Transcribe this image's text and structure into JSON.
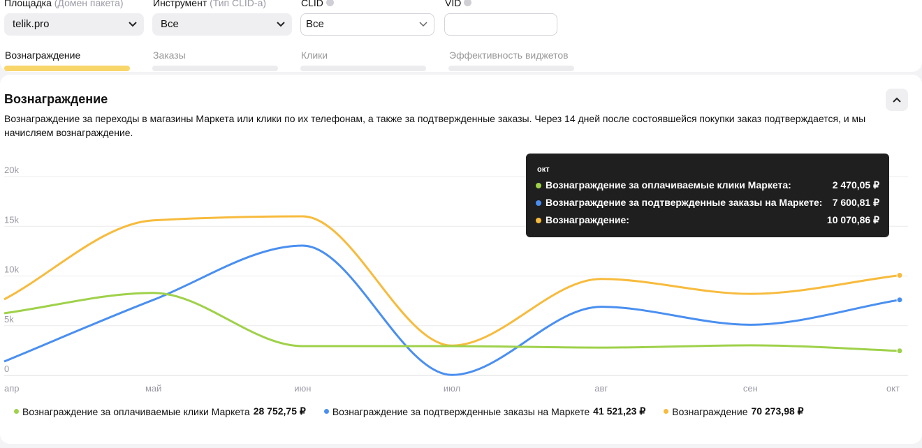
{
  "filters": [
    {
      "label": "Площадка",
      "hint": "(Домен пакета)",
      "value": "telik.pro"
    },
    {
      "label": "Инструмент",
      "hint": "(Тип CLID-а)",
      "value": "Все"
    },
    {
      "label": "CLID",
      "value": "Все"
    },
    {
      "label": "VID"
    }
  ],
  "tabs": [
    "Вознаграждение",
    "Заказы",
    "Клики",
    "Эффективность виджетов"
  ],
  "section": {
    "title": "Вознаграждение",
    "description": "Вознаграждение за переходы в магазины Маркета или клики по их телефонам, а также за подтвержденные заказы. Через 14 дней после состоявшейся покупки заказ подтверждается, и мы начисляем вознаграждение."
  },
  "chart_data": {
    "type": "line",
    "categories": [
      "апр",
      "май",
      "июн",
      "июл",
      "авг",
      "сен",
      "окт"
    ],
    "series": [
      {
        "name": "Вознаграждение за оплачиваемые клики Маркета",
        "total": "28 752,75 ₽",
        "color": "#9fd14a",
        "values": [
          6250,
          8300,
          2950,
          2950,
          2800,
          3030,
          2470.05
        ]
      },
      {
        "name": "Вознаграждение за подтвержденные заказы на Маркете",
        "total": "41 521,23 ₽",
        "color": "#4a8ff0",
        "values": [
          1400,
          7600,
          13050,
          50,
          6900,
          5100,
          7600.81
        ]
      },
      {
        "name": "Вознаграждение",
        "total": "70 273,98 ₽",
        "color": "#f7bb3d",
        "values": [
          7650,
          15600,
          16000,
          3000,
          9700,
          8200,
          10070.86
        ]
      }
    ],
    "ylim": [
      0,
      20000
    ],
    "yticks": [
      {
        "value": 0,
        "label": "0"
      },
      {
        "value": 5000,
        "label": "5k"
      },
      {
        "value": 10000,
        "label": "10k"
      },
      {
        "value": 15000,
        "label": "15k"
      },
      {
        "value": 20000,
        "label": "20k"
      }
    ],
    "grid": true
  },
  "tooltip": {
    "title": "окт",
    "rows": [
      {
        "label": "Вознаграждение за оплачиваемые клики Маркета:",
        "value": "2 470,05 ₽"
      },
      {
        "label": "Вознаграждение за подтвержденные заказы на Маркете:",
        "value": "7 600,81 ₽"
      },
      {
        "label": "Вознаграждение:",
        "value": "10 070,86 ₽"
      }
    ]
  }
}
